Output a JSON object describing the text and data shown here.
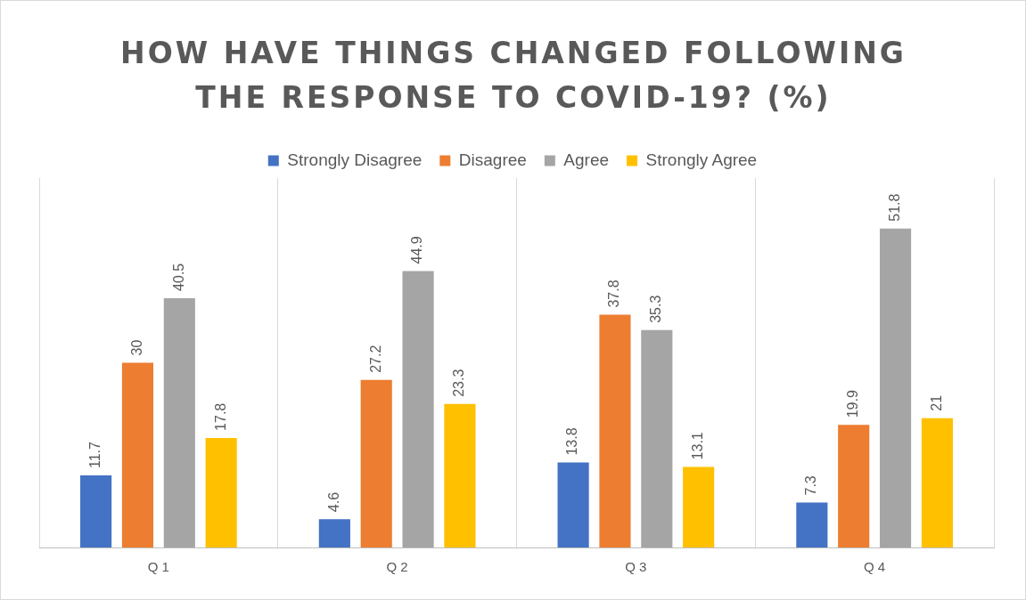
{
  "chart_data": {
    "type": "bar",
    "title": "HOW HAVE THINGS CHANGED FOLLOWING THE RESPONSE TO COVID-19? (%)",
    "categories": [
      "Q 1",
      "Q 2",
      "Q 3",
      "Q 4"
    ],
    "series": [
      {
        "name": "Strongly Disagree",
        "color": "#4472c4",
        "values": [
          11.7,
          4.6,
          13.8,
          7.3
        ]
      },
      {
        "name": "Disagree",
        "color": "#ed7d31",
        "values": [
          30,
          27.2,
          37.8,
          19.9
        ]
      },
      {
        "name": "Agree",
        "color": "#a5a5a5",
        "values": [
          40.5,
          44.9,
          35.3,
          51.8
        ]
      },
      {
        "name": "Strongly Agree",
        "color": "#ffc000",
        "values": [
          17.8,
          23.3,
          13.1,
          21
        ]
      }
    ],
    "relative": false,
    "data_labels": true,
    "grid": "x",
    "legend": "top"
  }
}
